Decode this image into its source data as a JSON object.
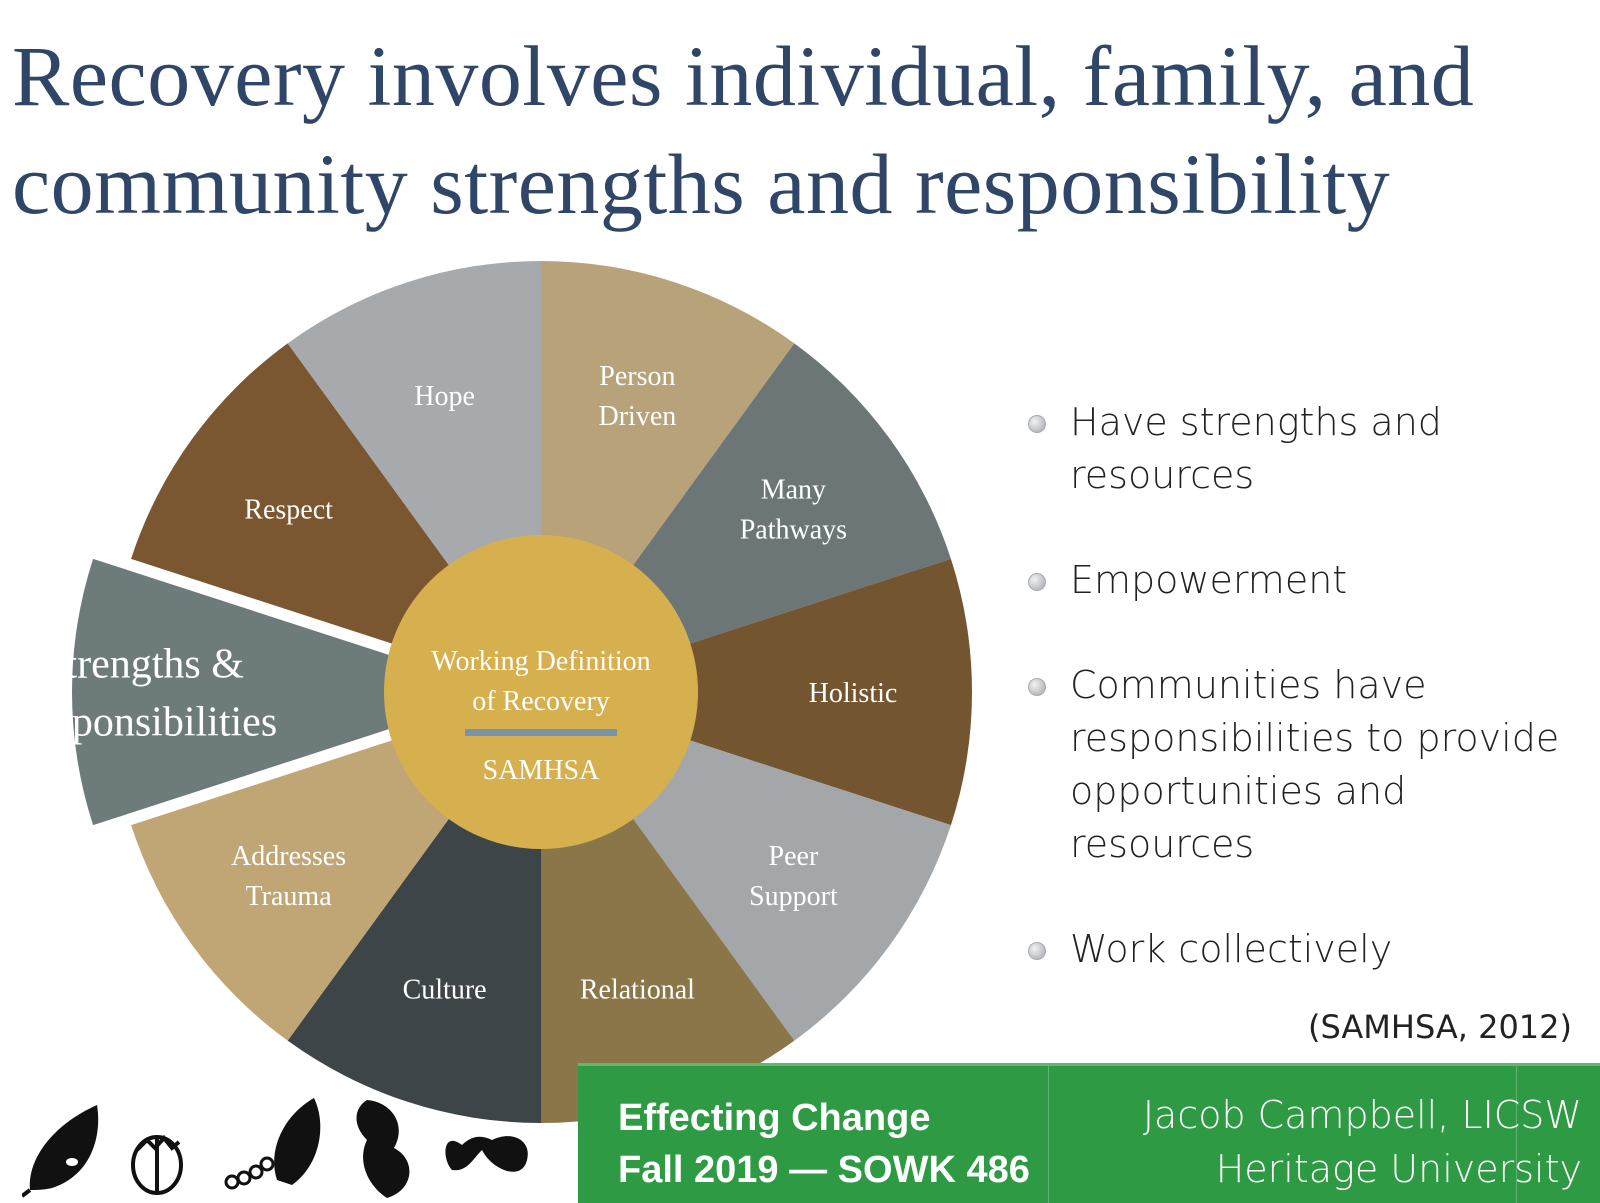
{
  "title": {
    "line1": "Recovery involves individual, family, and",
    "line2": "community strengths and responsibility"
  },
  "wheel": {
    "center": {
      "line1": "Working Definition",
      "line2": "of Recovery",
      "source": "SAMHSA",
      "color": "#d6b04f",
      "divider_color": "#7b93a8"
    },
    "segments": [
      {
        "lines": [
          "Person",
          "Driven"
        ],
        "color": "#b7a27a"
      },
      {
        "lines": [
          "Many",
          "Pathways"
        ],
        "color": "#6c7677"
      },
      {
        "lines": [
          "Holistic"
        ],
        "color": "#73552f"
      },
      {
        "lines": [
          "Peer",
          "Support"
        ],
        "color": "#a3a7aa"
      },
      {
        "lines": [
          "Relational"
        ],
        "color": "#8b764a"
      },
      {
        "lines": [
          "Culture"
        ],
        "color": "#3e4548"
      },
      {
        "lines": [
          "Addresses",
          "Trauma"
        ],
        "color": "#c0a674"
      },
      {
        "lines": [
          "Strengths &",
          "Responsibilities"
        ],
        "color": "#6d7b7b",
        "exploded": true
      },
      {
        "lines": [
          "Respect"
        ],
        "color": "#7a5730"
      },
      {
        "lines": [
          "Hope"
        ],
        "color": "#a6aaad"
      }
    ]
  },
  "bullets": [
    "Have strengths and resources",
    "Empowerment",
    "Communities have responsibilities to provide opportunities and resources",
    "Work collectively"
  ],
  "citation": "(SAMHSA, 2012)",
  "footer": {
    "course_line1": "Effecting Change",
    "course_line2": "Fall 2019 — SOWK 486",
    "author": "Jacob Campbell, LICSW",
    "institution": "Heritage University",
    "color": "#2e9a44"
  }
}
